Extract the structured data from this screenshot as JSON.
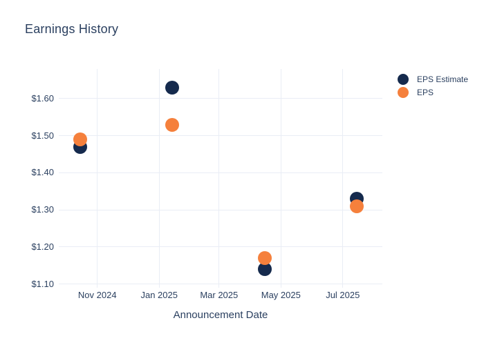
{
  "title": "Earnings History",
  "x_axis": {
    "title": "Announcement Date",
    "ticks": [
      "Nov 2024",
      "Jan 2025",
      "Mar 2025",
      "May 2025",
      "Jul 2025"
    ]
  },
  "y_axis": {
    "ticks": [
      "$1.60",
      "$1.50",
      "$1.40",
      "$1.30",
      "$1.20",
      "$1.10"
    ]
  },
  "legend": [
    {
      "label": "EPS Estimate",
      "color": "#152a4d"
    },
    {
      "label": "EPS",
      "color": "#f5803c"
    }
  ],
  "colors": {
    "eps_estimate": "#152a4d",
    "eps": "#f5803c",
    "text": "#2a3f5f",
    "gridline": "#e9edf5",
    "background": "#ffffff"
  },
  "chart_data": {
    "type": "scatter",
    "title": "Earnings History",
    "xlabel": "Announcement Date",
    "ylabel": "",
    "x": [
      "2024-10-15",
      "2025-01-14",
      "2025-04-15",
      "2025-07-15"
    ],
    "series": [
      {
        "name": "EPS Estimate",
        "color": "#152a4d",
        "values": [
          1.47,
          1.63,
          1.14,
          1.33
        ]
      },
      {
        "name": "EPS",
        "color": "#f5803c",
        "values": [
          1.49,
          1.53,
          1.17,
          1.31
        ]
      }
    ],
    "x_tick_dates": [
      "2024-11-01",
      "2025-01-01",
      "2025-03-01",
      "2025-05-01",
      "2025-07-01"
    ],
    "x_tick_labels": [
      "Nov 2024",
      "Jan 2025",
      "Mar 2025",
      "May 2025",
      "Jul 2025"
    ],
    "x_range": [
      "2024-09-24",
      "2025-08-09"
    ],
    "y_ticks": [
      1.6,
      1.5,
      1.4,
      1.3,
      1.2,
      1.1
    ],
    "ylim": [
      1.09,
      1.68
    ],
    "grid": true,
    "legend_position": "top-right-outside",
    "marker_size": 20
  }
}
